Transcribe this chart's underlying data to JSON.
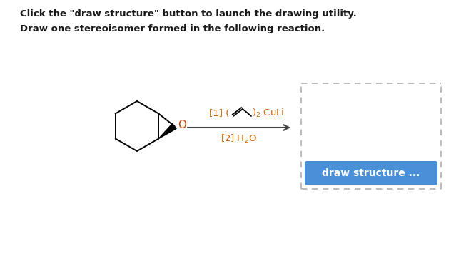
{
  "title_line1": "Click the \"draw structure\" button to launch the drawing utility.",
  "title_line2": "Draw one stereoisomer formed in the following reaction.",
  "button_text": "draw structure ...",
  "button_color": "#4a90d9",
  "button_text_color": "#ffffff",
  "dashed_box_color": "#b0b0b0",
  "arrow_color": "#444444",
  "text_color": "#1a1a1a",
  "reagent_color": "#cc6600",
  "background_color": "#ffffff",
  "fig_width": 6.46,
  "fig_height": 3.62,
  "dpi": 100
}
